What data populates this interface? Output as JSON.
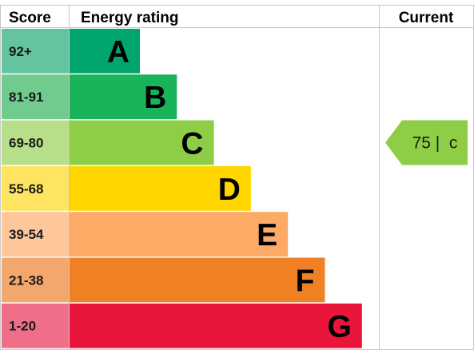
{
  "header": {
    "score_label": "Score",
    "rating_label": "Energy rating",
    "current_label": "Current"
  },
  "chart_data": {
    "type": "bar",
    "title": "",
    "ordinal_scale": [
      "A",
      "B",
      "C",
      "D",
      "E",
      "F",
      "G"
    ],
    "bands": [
      {
        "score": "92+",
        "letter": "A",
        "bar_color": "#00a66e",
        "score_color": "#63c49f"
      },
      {
        "score": "81-91",
        "letter": "B",
        "bar_color": "#19b459",
        "score_color": "#71cb8f"
      },
      {
        "score": "69-80",
        "letter": "C",
        "bar_color": "#8dce46",
        "score_color": "#b7df8a"
      },
      {
        "score": "55-68",
        "letter": "D",
        "bar_color": "#ffd500",
        "score_color": "#fee461"
      },
      {
        "score": "39-54",
        "letter": "E",
        "bar_color": "#fcaa65",
        "score_color": "#fdc69b"
      },
      {
        "score": "21-38",
        "letter": "F",
        "bar_color": "#ef8023",
        "score_color": "#f4a76c"
      },
      {
        "score": "1-20",
        "letter": "G",
        "bar_color": "#e9153b",
        "score_color": "#ef6f88"
      }
    ],
    "current": {
      "value": 75,
      "letter": "c",
      "band": "C",
      "display": "75 |  c",
      "color": "#8dce46"
    }
  }
}
